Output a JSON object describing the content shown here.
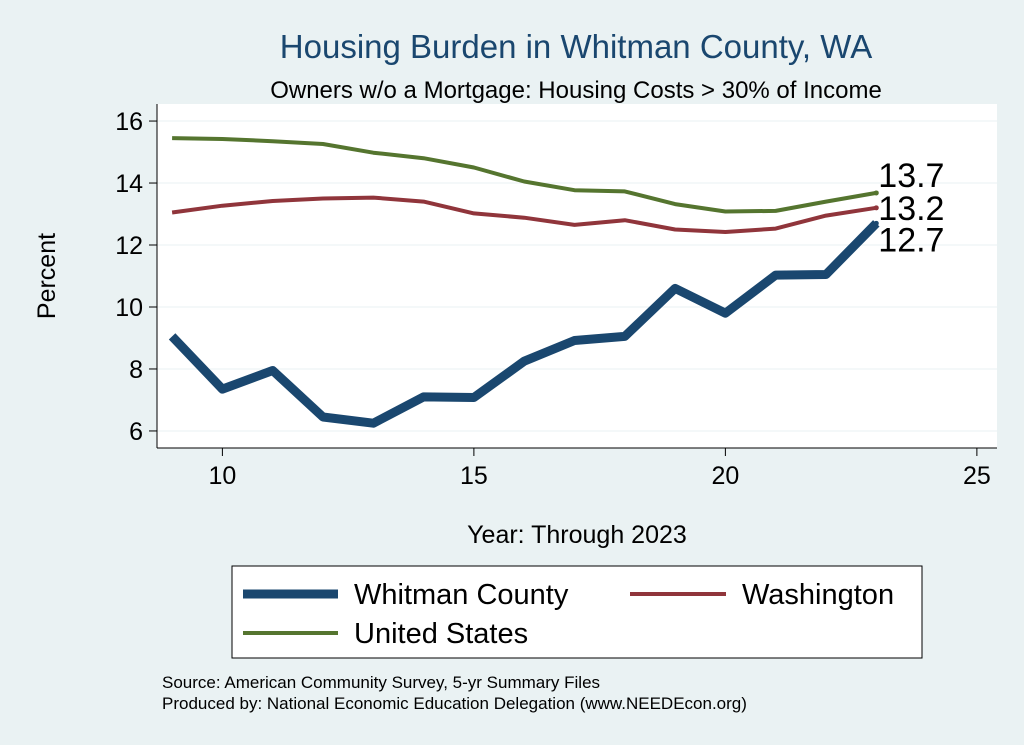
{
  "chart_data": {
    "type": "line",
    "title": "Housing Burden in Whitman County, WA",
    "subtitle": "Owners w/o a Mortgage: Housing Costs > 30% of Income",
    "xlabel": "Year: Through 2023",
    "ylabel": "Percent",
    "xlim": [
      8.7,
      25.4
    ],
    "ylim": [
      5.45,
      16.55
    ],
    "xticks": [
      10,
      15,
      20,
      25
    ],
    "yticks": [
      6,
      8,
      10,
      12,
      14,
      16
    ],
    "grid": true,
    "legend_position": "bottom",
    "x": [
      9,
      10,
      11,
      12,
      13,
      14,
      15,
      16,
      17,
      18,
      19,
      20,
      21,
      22,
      23
    ],
    "series": [
      {
        "name": "Whitman County",
        "color": "#1a476f",
        "values": [
          9.05,
          7.35,
          7.95,
          6.45,
          6.25,
          7.1,
          7.08,
          8.25,
          8.92,
          9.05,
          10.6,
          9.8,
          11.03,
          11.05,
          12.7
        ],
        "end_label": "12.7"
      },
      {
        "name": "Washington",
        "color": "#90353b",
        "values": [
          13.05,
          13.27,
          13.42,
          13.5,
          13.53,
          13.4,
          13.02,
          12.88,
          12.65,
          12.8,
          12.5,
          12.42,
          12.53,
          12.95,
          13.2
        ],
        "end_label": "13.2"
      },
      {
        "name": "United States",
        "color": "#55752f",
        "values": [
          15.45,
          15.42,
          15.35,
          15.26,
          14.98,
          14.8,
          14.5,
          14.05,
          13.77,
          13.73,
          13.32,
          13.08,
          13.1,
          13.4,
          13.68
        ],
        "end_label": "13.7"
      }
    ],
    "source_lines": [
      "Source: American Community Survey, 5-yr Summary Files",
      "Produced by: National Economic Education Delegation (www.NEEDEcon.org)"
    ]
  }
}
